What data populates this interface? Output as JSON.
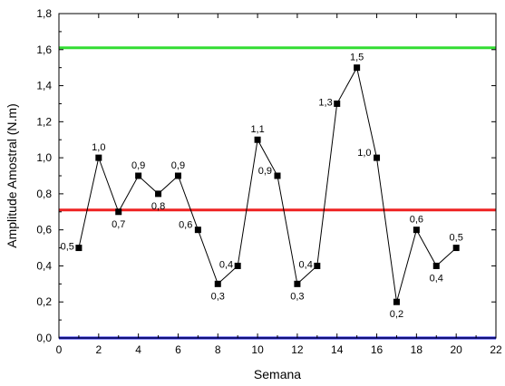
{
  "chart_data": {
    "type": "line",
    "title": "",
    "xlabel": "Semana",
    "ylabel": "Amplitude Amostral (N.m)",
    "xlim": [
      0,
      22
    ],
    "ylim": [
      0,
      1.8
    ],
    "x_ticks": [
      "0",
      "2",
      "4",
      "6",
      "8",
      "10",
      "12",
      "14",
      "16",
      "18",
      "20",
      "22"
    ],
    "y_ticks": [
      "0,0",
      "0,2",
      "0,4",
      "0,6",
      "0,8",
      "1,0",
      "1,2",
      "1,4",
      "1,6",
      "1,8"
    ],
    "grid": false,
    "legend": "none",
    "series": [
      {
        "x": [
          1,
          2,
          3,
          4,
          5,
          6,
          7,
          8,
          9,
          10,
          11,
          12,
          13,
          14,
          15,
          16,
          17,
          18,
          19,
          20
        ],
        "values": [
          0.5,
          1.0,
          0.7,
          0.9,
          0.8,
          0.9,
          0.6,
          0.3,
          0.4,
          1.1,
          0.9,
          0.3,
          0.4,
          1.3,
          1.5,
          1.0,
          0.2,
          0.6,
          0.4,
          0.5
        ],
        "labels": [
          "0,5",
          "1,0",
          "0,7",
          "0,9",
          "0,8",
          "0,9",
          "0,6",
          "0,3",
          "0,4",
          "1,1",
          "0,9",
          "0,3",
          "0,4",
          "1,3",
          "1,5",
          "1,0",
          "0,2",
          "0,6",
          "0,4",
          "0,5"
        ],
        "color": "#000000"
      }
    ],
    "reference_lines": [
      {
        "value": 1.61,
        "color": "#33dd33"
      },
      {
        "value": 0.71,
        "color": "#ee2222"
      },
      {
        "value": 0.0,
        "color": "#2222ee"
      }
    ]
  }
}
